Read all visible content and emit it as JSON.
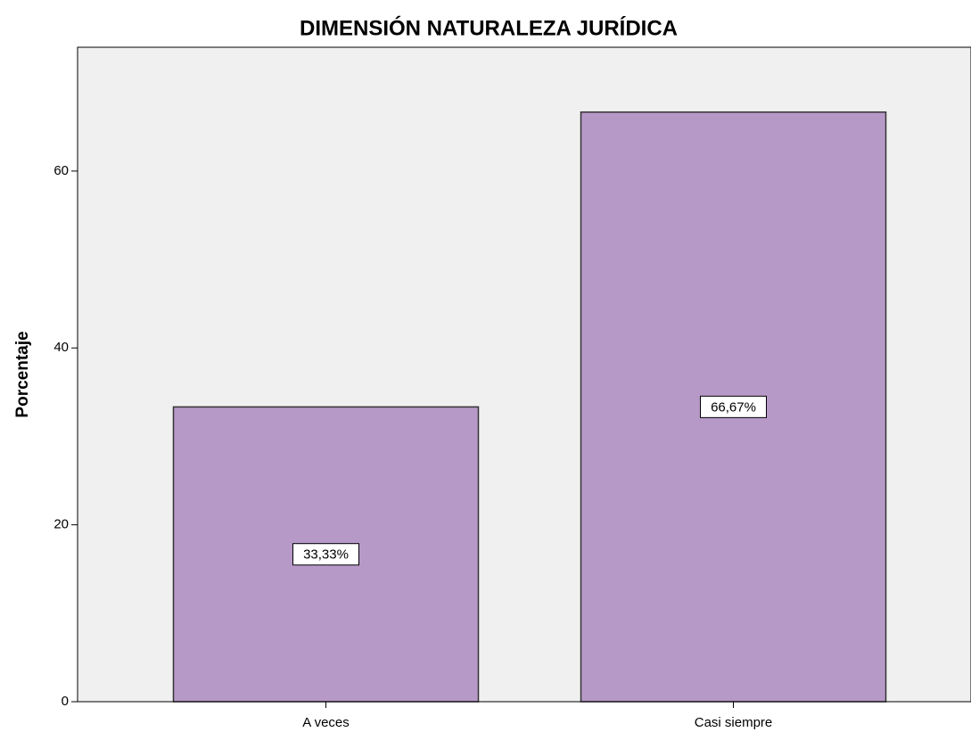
{
  "chart_data": {
    "type": "bar",
    "title": "DIMENSIÓN NATURALEZA JURÍDICA",
    "y_label": "Porcentaje",
    "categories": [
      "A veces",
      "Casi siempre"
    ],
    "values": [
      33.33,
      66.67
    ],
    "value_labels": [
      "33,33%",
      "66,67%"
    ],
    "color": "#b799c8",
    "ylim": [
      0,
      74
    ],
    "yticks": [
      0,
      20,
      40,
      60
    ]
  }
}
